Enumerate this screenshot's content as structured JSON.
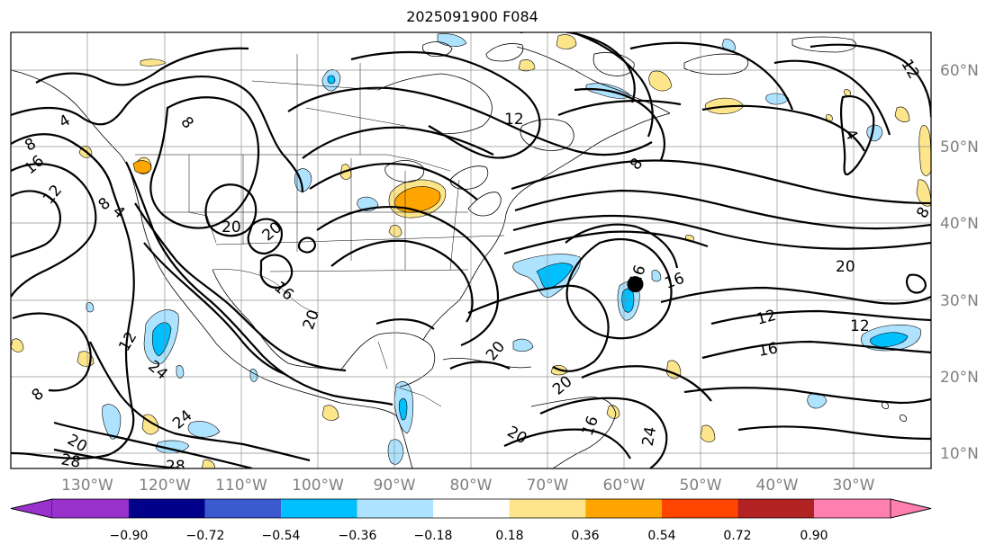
{
  "title": "2025091900 F084",
  "map": {
    "lon_range": [
      -137,
      -25
    ],
    "lat_range": [
      7,
      65
    ],
    "lon_labels": [
      "130°W",
      "120°W",
      "110°W",
      "100°W",
      "90°W",
      "80°W",
      "70°W",
      "60°W",
      "50°W",
      "40°W",
      "30°W"
    ],
    "lat_labels": [
      "60°N",
      "50°N",
      "40°N",
      "30°N",
      "20°N",
      "10°N"
    ],
    "grid": true,
    "contour_labels": [
      "12",
      "8",
      "4",
      "8",
      "16",
      "12",
      "8",
      "4",
      "20",
      "20",
      "16",
      "16",
      "12",
      "8",
      "4",
      "8",
      "20",
      "12",
      "12",
      "16",
      "24",
      "24",
      "12",
      "8",
      "20",
      "28",
      "28",
      "20",
      "20",
      "20",
      "16",
      "24",
      "20",
      "16"
    ],
    "marker": {
      "name": "storm-position-marker",
      "lon": -61,
      "lat": 31.5
    }
  },
  "colorbar": {
    "ticks": [
      "−0.90",
      "−0.72",
      "−0.54",
      "−0.36",
      "−0.18",
      "0.18",
      "0.36",
      "0.54",
      "0.72",
      "0.90"
    ],
    "colors": [
      "#9932cc",
      "#00008b",
      "#3a5bd0",
      "#00bfff",
      "#aee3ff",
      "#ffffff",
      "#fce58a",
      "#ffa500",
      "#ff4500",
      "#b22222",
      "#ff7fae"
    ],
    "extend": "both"
  }
}
